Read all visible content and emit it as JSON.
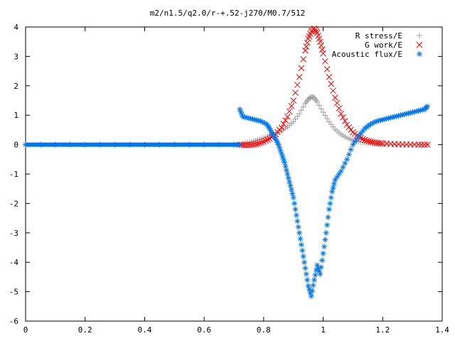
{
  "chart_data": {
    "type": "scatter",
    "title": "m2/n1.5/q2.0/r-+.52-j270/M0.7/512",
    "xlabel": "",
    "ylabel": "",
    "xlim": [
      0,
      1.4
    ],
    "ylim": [
      -6,
      4
    ],
    "x_ticks": [
      "0",
      "0.2",
      "0.4",
      "0.6",
      "0.8",
      "1",
      "1.2",
      "1.4"
    ],
    "y_ticks": [
      "-6",
      "-5",
      "-4",
      "-3",
      "-2",
      "-1",
      "0",
      "1",
      "2",
      "3",
      "4"
    ],
    "legend_position": "top-right",
    "grid": false,
    "series": [
      {
        "name": "R stress/E",
        "marker": "plus",
        "color": "#a0a0a0",
        "x": [
          0.72,
          0.74,
          0.76,
          0.78,
          0.8,
          0.82,
          0.84,
          0.86,
          0.88,
          0.9,
          0.92,
          0.94,
          0.95,
          0.96,
          0.97,
          0.98,
          1.0,
          1.02,
          1.04,
          1.06,
          1.08,
          1.1,
          1.12,
          1.14,
          1.16,
          1.18,
          1.2,
          1.22,
          1.26,
          1.3,
          1.35
        ],
        "y": [
          0.0,
          0.05,
          0.1,
          0.16,
          0.22,
          0.3,
          0.38,
          0.48,
          0.6,
          0.78,
          1.05,
          1.4,
          1.55,
          1.62,
          1.6,
          1.45,
          1.1,
          0.78,
          0.52,
          0.35,
          0.23,
          0.15,
          0.1,
          0.07,
          0.05,
          0.03,
          0.02,
          0.01,
          0.0,
          0.0,
          0.0
        ]
      },
      {
        "name": "G work/E",
        "marker": "cross",
        "color": "#ff0000",
        "x": [
          0.72,
          0.74,
          0.76,
          0.78,
          0.8,
          0.82,
          0.84,
          0.86,
          0.88,
          0.9,
          0.92,
          0.94,
          0.95,
          0.96,
          0.97,
          0.98,
          0.99,
          1.0,
          1.02,
          1.04,
          1.06,
          1.08,
          1.1,
          1.12,
          1.14,
          1.16,
          1.18,
          1.2,
          1.24,
          1.28,
          1.32,
          1.35
        ],
        "y": [
          0.0,
          -0.02,
          -0.01,
          0.03,
          0.1,
          0.2,
          0.35,
          0.58,
          0.95,
          1.5,
          2.3,
          3.2,
          3.6,
          3.85,
          3.95,
          3.8,
          3.5,
          3.1,
          2.3,
          1.6,
          1.05,
          0.68,
          0.42,
          0.26,
          0.16,
          0.1,
          0.06,
          0.04,
          0.02,
          0.01,
          0.0,
          0.0
        ]
      },
      {
        "name": "Acoustic flux/E",
        "marker": "star",
        "color": "#0077ee",
        "x": [
          0.72,
          0.73,
          0.75,
          0.77,
          0.79,
          0.81,
          0.82,
          0.83,
          0.84,
          0.85,
          0.86,
          0.87,
          0.88,
          0.89,
          0.9,
          0.91,
          0.92,
          0.93,
          0.94,
          0.95,
          0.96,
          0.97,
          0.98,
          0.99,
          1.0,
          1.01,
          1.02,
          1.03,
          1.04,
          1.06,
          1.08,
          1.1,
          1.12,
          1.14,
          1.16,
          1.18,
          1.2,
          1.22,
          1.24,
          1.26,
          1.28,
          1.3,
          1.32,
          1.34,
          1.35
        ],
        "y": [
          1.2,
          0.95,
          0.9,
          0.85,
          0.8,
          0.7,
          0.55,
          0.35,
          0.2,
          0.0,
          -0.3,
          -0.6,
          -1.0,
          -1.4,
          -1.8,
          -2.4,
          -3.0,
          -3.6,
          -4.2,
          -4.8,
          -5.15,
          -4.6,
          -4.1,
          -4.4,
          -3.7,
          -3.0,
          -2.2,
          -1.6,
          -1.2,
          -0.9,
          -0.5,
          0.0,
          0.3,
          0.55,
          0.7,
          0.8,
          0.85,
          0.9,
          0.95,
          1.0,
          1.05,
          1.1,
          1.15,
          1.2,
          1.3
        ]
      },
      {
        "name": "Acoustic flux/E",
        "marker": "star",
        "color": "#0077ee",
        "x": [
          0.0,
          0.05,
          0.1,
          0.15,
          0.2,
          0.25,
          0.3,
          0.35,
          0.4,
          0.45,
          0.5,
          0.55,
          0.6,
          0.65,
          0.7,
          0.72
        ],
        "y": [
          0,
          0,
          0,
          0,
          0,
          0,
          0,
          0,
          0,
          0,
          0,
          0,
          0,
          0,
          0,
          0
        ]
      }
    ]
  }
}
